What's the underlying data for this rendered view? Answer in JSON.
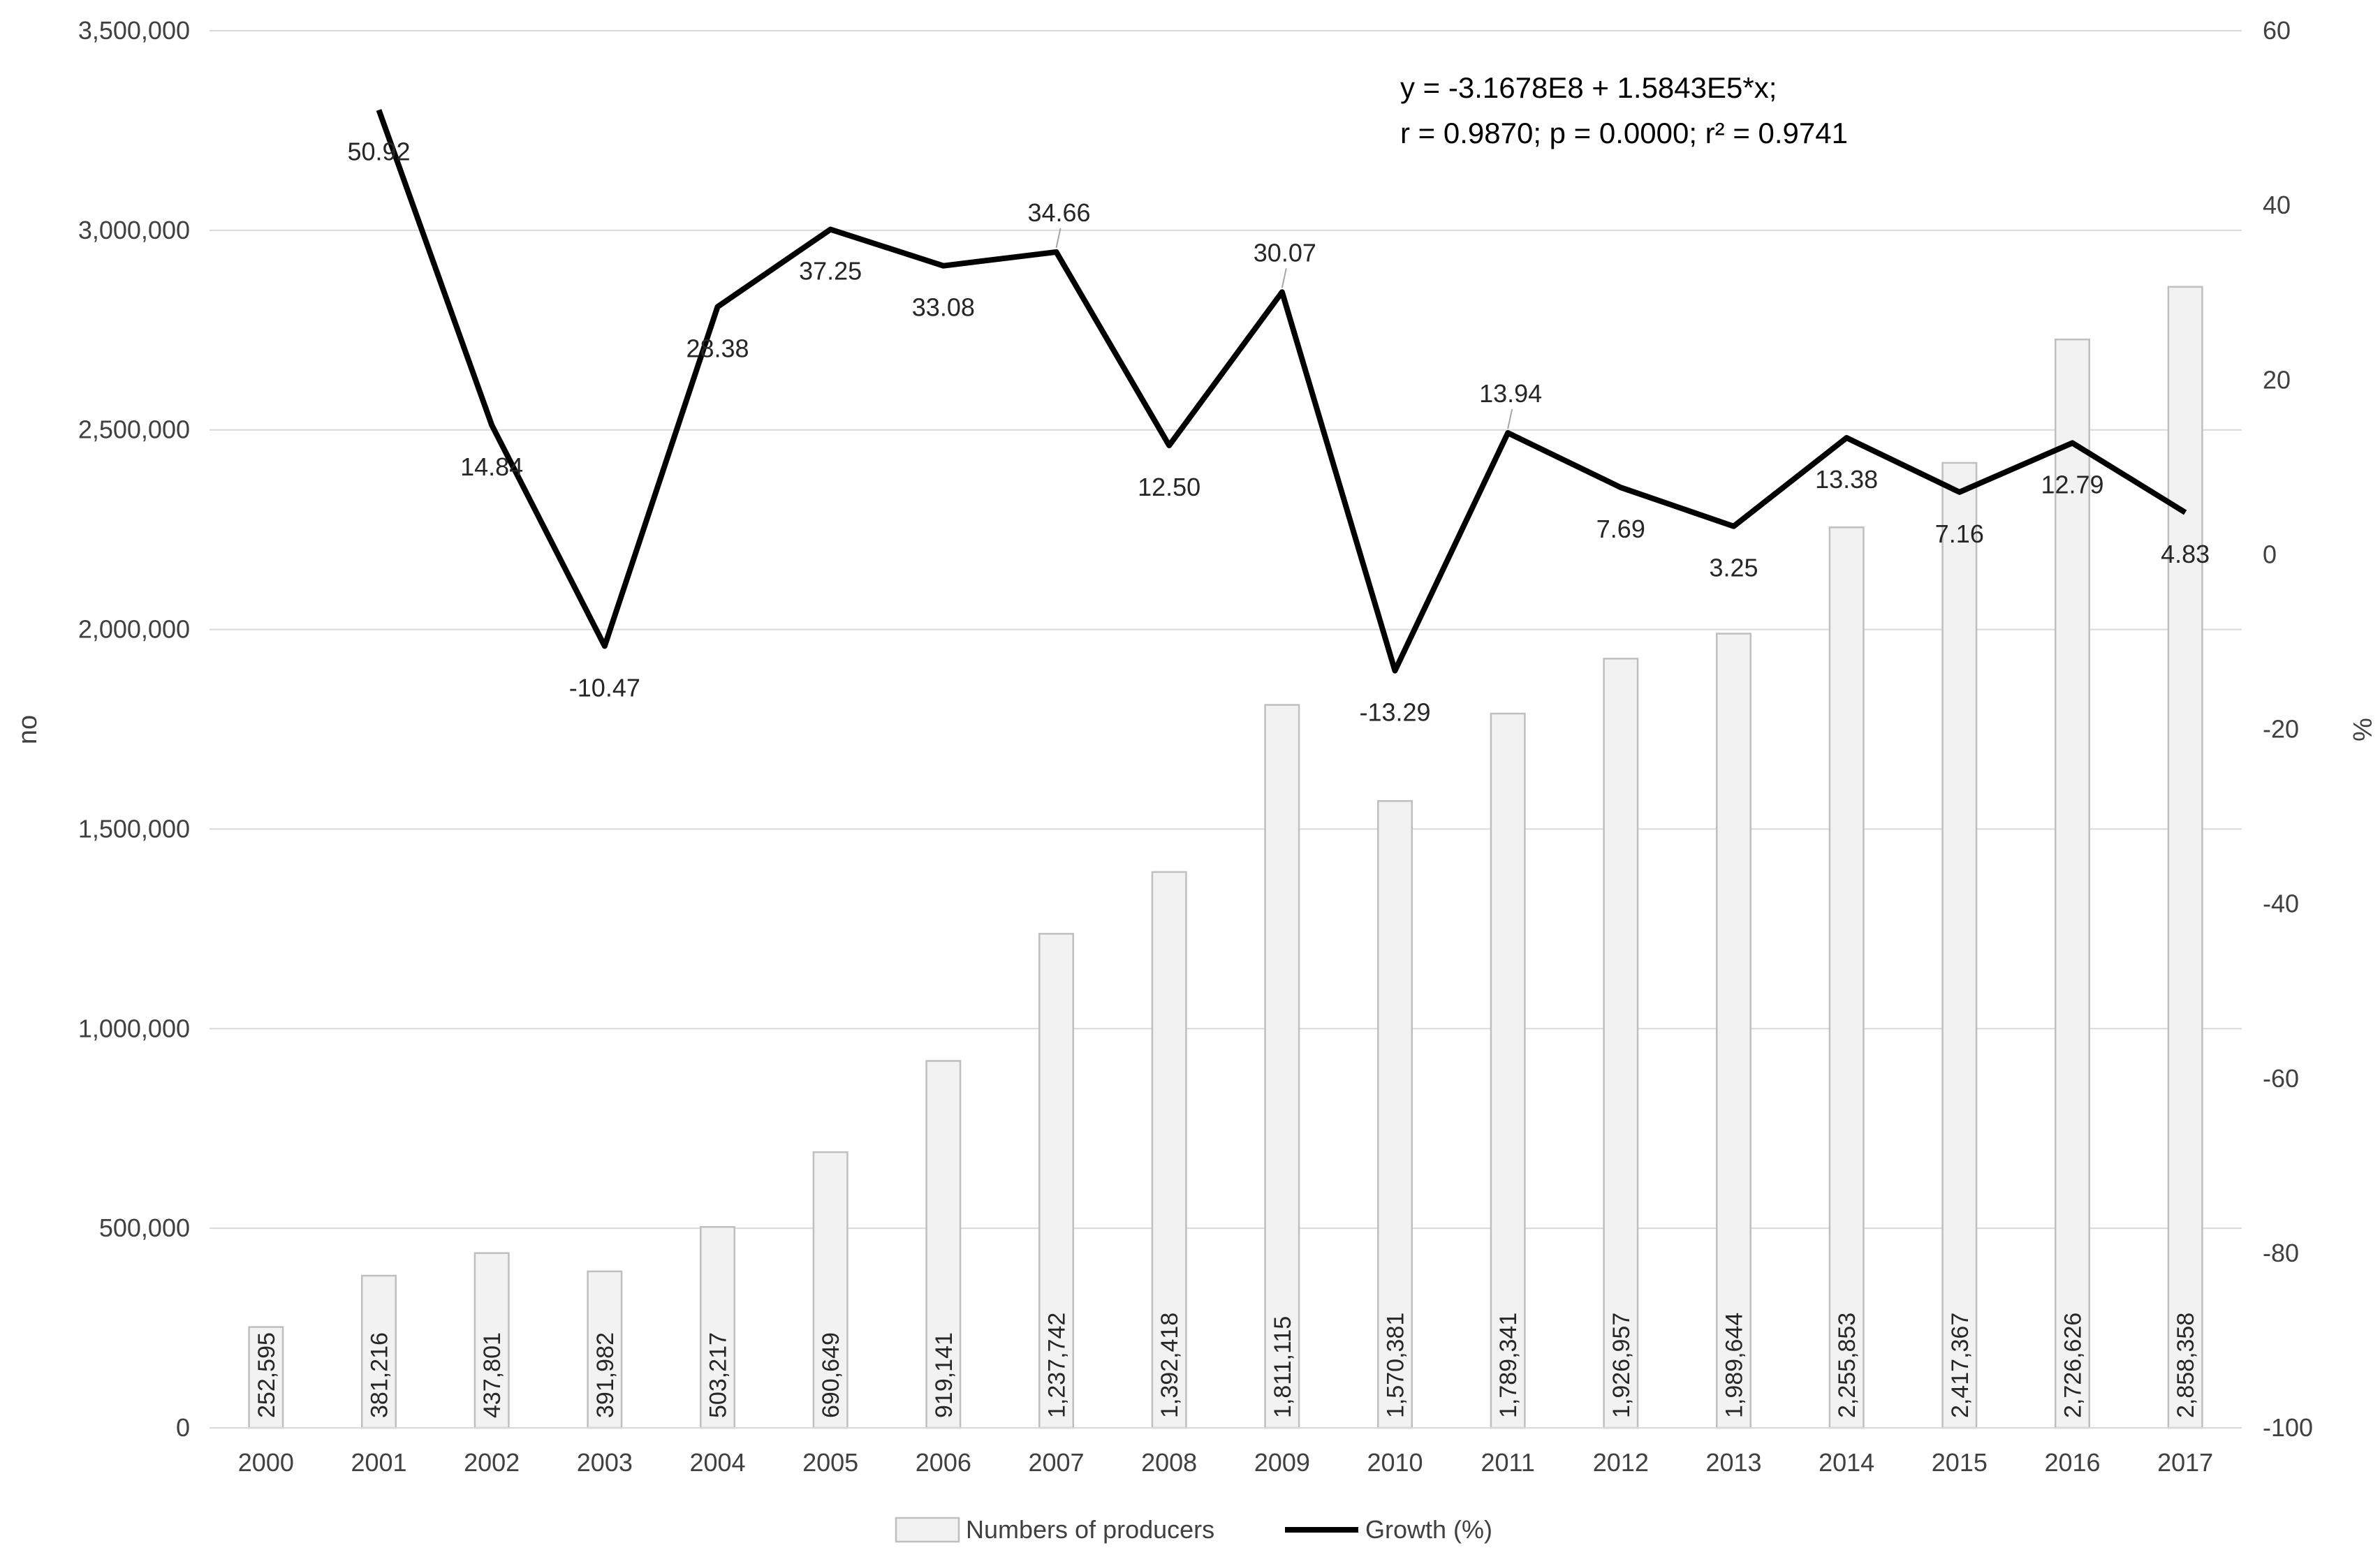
{
  "colors": {
    "bar_fill": "#f2f2f2",
    "bar_stroke": "#bfbfbf",
    "line": "#000000",
    "grid": "#d9d9d9",
    "text": "#404040"
  },
  "chart_data": {
    "type": "bar+line",
    "title": "",
    "xlabel": "",
    "ylabel": "no",
    "y2label": "%",
    "ylim": [
      0,
      3500000
    ],
    "y2lim": [
      -100,
      60
    ],
    "grid": true,
    "legend_position": "bottom",
    "categories": [
      "2000",
      "2001",
      "2002",
      "2003",
      "2004",
      "2005",
      "2006",
      "2007",
      "2008",
      "2009",
      "2010",
      "2011",
      "2012",
      "2013",
      "2014",
      "2015",
      "2016",
      "2017"
    ],
    "y_ticks": [
      {
        "value": 0,
        "label": "0"
      },
      {
        "value": 500000,
        "label": "500,000"
      },
      {
        "value": 1000000,
        "label": "1,000,000"
      },
      {
        "value": 1500000,
        "label": "1,500,000"
      },
      {
        "value": 2000000,
        "label": "2,000,000"
      },
      {
        "value": 2500000,
        "label": "2,500,000"
      },
      {
        "value": 3000000,
        "label": "3,000,000"
      },
      {
        "value": 3500000,
        "label": "3,500,000"
      }
    ],
    "y2_ticks": [
      {
        "value": -100,
        "label": "-100"
      },
      {
        "value": -80,
        "label": "-80"
      },
      {
        "value": -60,
        "label": "-60"
      },
      {
        "value": -40,
        "label": "-40"
      },
      {
        "value": -20,
        "label": "-20"
      },
      {
        "value": 0,
        "label": "0"
      },
      {
        "value": 20,
        "label": "20"
      },
      {
        "value": 40,
        "label": "40"
      },
      {
        "value": 60,
        "label": "60"
      }
    ],
    "series": [
      {
        "name": "Numbers of producers",
        "type": "bar",
        "axis": "left",
        "values": [
          252595,
          381216,
          437801,
          391982,
          503217,
          690649,
          919141,
          1237742,
          1392418,
          1811115,
          1570381,
          1789341,
          1926957,
          1989644,
          2255853,
          2417367,
          2726626,
          2858358
        ],
        "labels": [
          "252,595",
          "381,216",
          "437,801",
          "391,982",
          "503,217",
          "690,649",
          "919,141",
          "1,237,742",
          "1,392,418",
          "1,811,115",
          "1,570,381",
          "1,789,341",
          "1,926,957",
          "1,989,644",
          "2,255,853",
          "2,417,367",
          "2,726,626",
          "2,858,358"
        ]
      },
      {
        "name": "Growth (%)",
        "type": "line",
        "axis": "right",
        "values": [
          null,
          50.92,
          14.84,
          -10.47,
          28.38,
          37.25,
          33.08,
          34.66,
          12.5,
          30.07,
          -13.29,
          13.94,
          7.69,
          3.25,
          13.38,
          7.16,
          12.79,
          4.83
        ],
        "labels": [
          null,
          "50.92",
          "14.84",
          "-10.47",
          "28.38",
          "37.25",
          "33.08",
          "34.66",
          "12.50",
          "30.07",
          "-13.29",
          "13.94",
          "7.69",
          "3.25",
          "13.38",
          "7.16",
          "12.79",
          "4.83"
        ],
        "label_position": [
          null,
          "below",
          "below",
          "below",
          "below",
          "below",
          "below",
          "above",
          "below",
          "above",
          "below",
          "above",
          "below",
          "below",
          "below",
          "below",
          "below",
          "below"
        ]
      }
    ],
    "annotations": [
      "y = -3.1678E8 + 1.5843E5*x;",
      "r = 0.9870; p = 0.0000; r² = 0.9741"
    ]
  }
}
